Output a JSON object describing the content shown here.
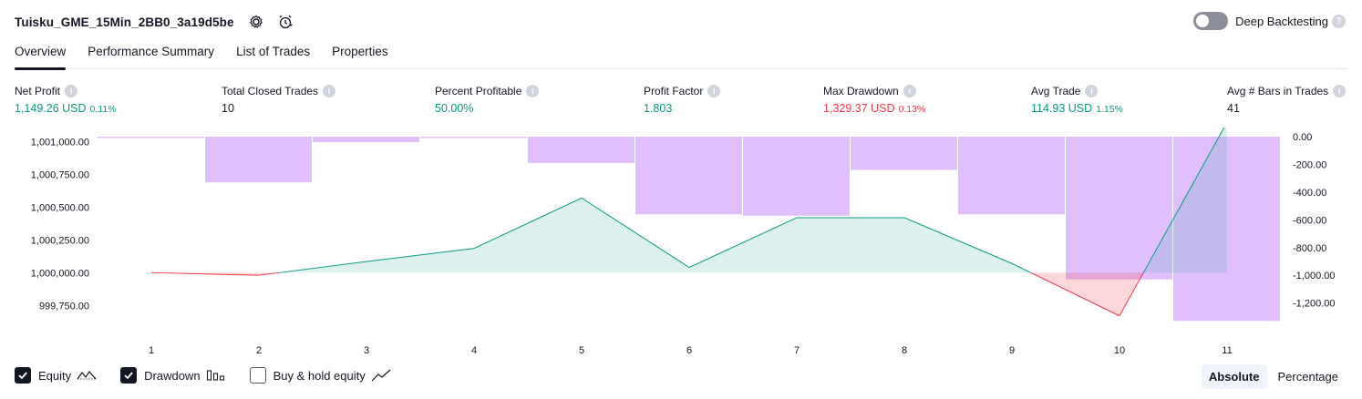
{
  "header": {
    "strategy_name": "Tuisku_GME_15Min_2BB0_3a19d5be",
    "deep_backtesting_label": "Deep Backtesting",
    "help_glyph": "?"
  },
  "tabs": [
    {
      "label": "Overview",
      "active": true
    },
    {
      "label": "Performance Summary",
      "active": false
    },
    {
      "label": "List of Trades",
      "active": false
    },
    {
      "label": "Properties",
      "active": false
    }
  ],
  "metrics": [
    {
      "label": "Net Profit",
      "value": "1,149.26 USD",
      "pct": "0.11%",
      "color": "green"
    },
    {
      "label": "Total Closed Trades",
      "value": "10",
      "pct": "",
      "color": "plain"
    },
    {
      "label": "Percent Profitable",
      "value": "50.00%",
      "pct": "",
      "color": "green"
    },
    {
      "label": "Profit Factor",
      "value": "1.803",
      "pct": "",
      "color": "green"
    },
    {
      "label": "Max Drawdown",
      "value": "1,329.37 USD",
      "pct": "0.13%",
      "color": "red"
    },
    {
      "label": "Avg Trade",
      "value": "114.93 USD",
      "pct": "1.15%",
      "color": "green"
    },
    {
      "label": "Avg # Bars in Trades",
      "value": "41",
      "pct": "",
      "color": "plain"
    }
  ],
  "info_glyph": "i",
  "chart_data": {
    "type": "line",
    "x": [
      1,
      2,
      3,
      4,
      5,
      6,
      7,
      8,
      9,
      10,
      11
    ],
    "xtick_labels": [
      "1",
      "2",
      "3",
      "4",
      "5",
      "6",
      "7",
      "8",
      "9",
      "10",
      "11"
    ],
    "series": [
      {
        "name": "Equity",
        "values": [
          1000000.0,
          999980.0,
          1000085.0,
          1000185.0,
          1000570.0,
          1000040.0,
          1000420.0,
          1000420.0,
          1000070.0,
          999670.0,
          1001149.26
        ]
      },
      {
        "name": "Drawdown",
        "values": [
          0.0,
          -330.0,
          -40.0,
          -10.0,
          -190.0,
          -560.0,
          -570.0,
          -240.0,
          -560.0,
          -1030.0,
          -1329.37
        ]
      }
    ],
    "left_axis": {
      "ylim": [
        999550,
        1001150
      ],
      "ticks": [
        "1,001,000.00",
        "1,000,750.00",
        "1,000,500.00",
        "1,000,250.00",
        "1,000,000.00",
        "999,750.00"
      ],
      "tick_values": [
        1001000,
        1000750,
        1000500,
        1000250,
        1000000,
        999750
      ]
    },
    "right_axis": {
      "ylim": [
        -1360,
        0
      ],
      "ticks": [
        "0.00",
        "-200.00",
        "-400.00",
        "-600.00",
        "-800.00",
        "-1,000.00",
        "-1,200.00"
      ],
      "tick_values": [
        0,
        -200,
        -400,
        -600,
        -800,
        -1000,
        -1200
      ]
    },
    "colors": {
      "positive": "#089981",
      "negative": "#f23645",
      "drawdown": "#e1bffc",
      "baseline_fill": "#089981"
    }
  },
  "legend": [
    {
      "label": "Equity",
      "checked": true,
      "icon": "equity-line-icon"
    },
    {
      "label": "Drawdown",
      "checked": true,
      "icon": "drawdown-bars-icon"
    },
    {
      "label": "Buy & hold equity",
      "checked": false,
      "icon": "buy-hold-line-icon"
    }
  ],
  "scale_options": [
    {
      "label": "Absolute",
      "active": true
    },
    {
      "label": "Percentage",
      "active": false
    }
  ]
}
